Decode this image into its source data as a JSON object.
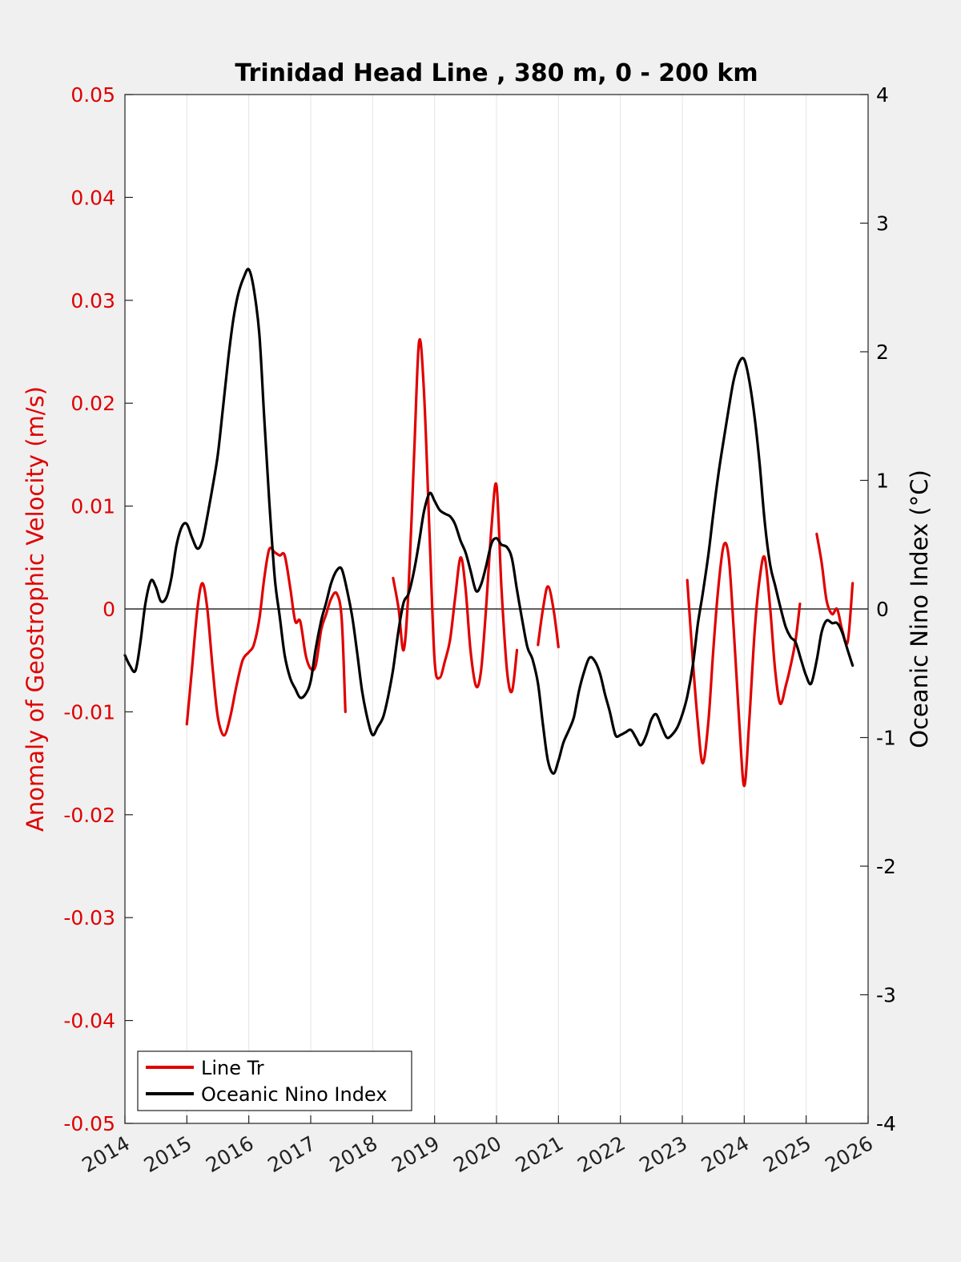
{
  "chart_data": {
    "type": "line",
    "title": "Trinidad Head Line , 380 m, 0 - 200 km",
    "xlabel": "",
    "xlim": [
      2014,
      2026
    ],
    "x_ticks": [
      "2014",
      "2015",
      "2016",
      "2017",
      "2018",
      "2019",
      "2020",
      "2021",
      "2022",
      "2023",
      "2024",
      "2025",
      "2026"
    ],
    "ylabel_left": "Anomaly of Geostrophic Velocity (m/s)",
    "ylim_left": [
      -0.05,
      0.05
    ],
    "y_ticks_left": [
      "0.05",
      "0.04",
      "0.03",
      "0.02",
      "0.01",
      "0",
      "-0.01",
      "-0.02",
      "-0.03",
      "-0.04",
      "-0.05"
    ],
    "ylabel_right": "Oceanic Nino Index (°C)",
    "ylim_right": [
      -4,
      4
    ],
    "y_ticks_right": [
      "4",
      "3",
      "2",
      "1",
      "0",
      "-1",
      "-2",
      "-3",
      "-4"
    ],
    "grid": "vertical",
    "legend_position": "bottom-left",
    "colors": {
      "line_tr": "#e00000",
      "oni": "#000000"
    },
    "series": [
      {
        "name": "Line Tr",
        "axis": "left",
        "color": "#e00000",
        "segments": [
          [
            [
              2015.0,
              -0.0112
            ],
            [
              2015.08,
              -0.006
            ],
            [
              2015.17,
              0.0
            ],
            [
              2015.25,
              0.0025
            ],
            [
              2015.33,
              0.0
            ],
            [
              2015.42,
              -0.006
            ],
            [
              2015.5,
              -0.0105
            ],
            [
              2015.6,
              -0.0123
            ],
            [
              2015.7,
              -0.0105
            ],
            [
              2015.8,
              -0.0075
            ],
            [
              2015.9,
              -0.005
            ],
            [
              2016.0,
              -0.0042
            ],
            [
              2016.08,
              -0.0035
            ],
            [
              2016.17,
              -0.001
            ],
            [
              2016.25,
              0.003
            ],
            [
              2016.33,
              0.0058
            ],
            [
              2016.42,
              0.0055
            ],
            [
              2016.5,
              0.0052
            ],
            [
              2016.58,
              0.0052
            ],
            [
              2016.67,
              0.002
            ],
            [
              2016.75,
              -0.0012
            ],
            [
              2016.83,
              -0.0012
            ],
            [
              2016.92,
              -0.0045
            ],
            [
              2017.0,
              -0.0058
            ],
            [
              2017.08,
              -0.0055
            ],
            [
              2017.17,
              -0.002
            ],
            [
              2017.25,
              -0.0005
            ],
            [
              2017.33,
              0.001
            ],
            [
              2017.42,
              0.0015
            ],
            [
              2017.5,
              -0.001
            ],
            [
              2017.56,
              -0.01
            ]
          ],
          [
            [
              2018.33,
              0.003
            ],
            [
              2018.42,
              0.0
            ],
            [
              2018.5,
              -0.004
            ],
            [
              2018.58,
              0.002
            ],
            [
              2018.67,
              0.015
            ],
            [
              2018.75,
              0.026
            ],
            [
              2018.83,
              0.021
            ],
            [
              2018.92,
              0.007
            ],
            [
              2019.0,
              -0.005
            ],
            [
              2019.08,
              -0.0067
            ],
            [
              2019.17,
              -0.005
            ],
            [
              2019.25,
              -0.003
            ],
            [
              2019.33,
              0.001
            ],
            [
              2019.42,
              0.005
            ],
            [
              2019.5,
              0.002
            ],
            [
              2019.58,
              -0.004
            ],
            [
              2019.67,
              -0.0075
            ],
            [
              2019.75,
              -0.006
            ],
            [
              2019.83,
              0.0
            ],
            [
              2019.92,
              0.008
            ],
            [
              2020.0,
              0.012
            ],
            [
              2020.08,
              0.002
            ],
            [
              2020.17,
              -0.006
            ],
            [
              2020.25,
              -0.008
            ],
            [
              2020.33,
              -0.004
            ]
          ],
          [
            [
              2020.67,
              -0.0035
            ],
            [
              2020.75,
              0.0
            ],
            [
              2020.83,
              0.0022
            ],
            [
              2020.92,
              0.0
            ],
            [
              2021.0,
              -0.0037
            ]
          ],
          [
            [
              2023.08,
              0.0028
            ],
            [
              2023.17,
              -0.005
            ],
            [
              2023.25,
              -0.011
            ],
            [
              2023.33,
              -0.015
            ],
            [
              2023.42,
              -0.011
            ],
            [
              2023.5,
              -0.004
            ],
            [
              2023.58,
              0.002
            ],
            [
              2023.67,
              0.0062
            ],
            [
              2023.75,
              0.005
            ],
            [
              2023.83,
              -0.002
            ],
            [
              2023.92,
              -0.011
            ],
            [
              2024.0,
              -0.0172
            ],
            [
              2024.08,
              -0.011
            ],
            [
              2024.17,
              -0.002
            ],
            [
              2024.25,
              0.003
            ],
            [
              2024.33,
              0.005
            ],
            [
              2024.42,
              0.0
            ],
            [
              2024.5,
              -0.006
            ],
            [
              2024.58,
              -0.0092
            ],
            [
              2024.67,
              -0.0075
            ],
            [
              2024.75,
              -0.0055
            ],
            [
              2024.83,
              -0.003
            ],
            [
              2024.9,
              0.0005
            ]
          ],
          [
            [
              2025.17,
              0.0073
            ],
            [
              2025.25,
              0.0045
            ],
            [
              2025.33,
              0.0008
            ],
            [
              2025.42,
              -0.0005
            ],
            [
              2025.5,
              0.0
            ],
            [
              2025.58,
              -0.002
            ],
            [
              2025.67,
              -0.0032
            ],
            [
              2025.75,
              0.0025
            ]
          ]
        ]
      },
      {
        "name": "Oceanic Nino Index",
        "axis": "right",
        "color": "#000000",
        "segments": [
          [
            [
              2014.0,
              -0.36
            ],
            [
              2014.08,
              -0.44
            ],
            [
              2014.17,
              -0.48
            ],
            [
              2014.25,
              -0.26
            ],
            [
              2014.33,
              0.04
            ],
            [
              2014.42,
              0.22
            ],
            [
              2014.5,
              0.17
            ],
            [
              2014.58,
              0.06
            ],
            [
              2014.67,
              0.09
            ],
            [
              2014.75,
              0.24
            ],
            [
              2014.83,
              0.49
            ],
            [
              2014.92,
              0.64
            ],
            [
              2015.0,
              0.66
            ],
            [
              2015.08,
              0.56
            ],
            [
              2015.17,
              0.47
            ],
            [
              2015.25,
              0.53
            ],
            [
              2015.33,
              0.72
            ],
            [
              2015.42,
              0.96
            ],
            [
              2015.5,
              1.2
            ],
            [
              2015.58,
              1.55
            ],
            [
              2015.67,
              1.95
            ],
            [
              2015.75,
              2.25
            ],
            [
              2015.83,
              2.45
            ],
            [
              2015.92,
              2.58
            ],
            [
              2016.0,
              2.64
            ],
            [
              2016.08,
              2.49
            ],
            [
              2016.17,
              2.14
            ],
            [
              2016.25,
              1.48
            ],
            [
              2016.33,
              0.84
            ],
            [
              2016.42,
              0.24
            ],
            [
              2016.5,
              -0.06
            ],
            [
              2016.58,
              -0.36
            ],
            [
              2016.67,
              -0.54
            ],
            [
              2016.75,
              -0.62
            ],
            [
              2016.83,
              -0.69
            ],
            [
              2016.92,
              -0.66
            ],
            [
              2017.0,
              -0.56
            ],
            [
              2017.08,
              -0.31
            ],
            [
              2017.17,
              -0.09
            ],
            [
              2017.25,
              0.05
            ],
            [
              2017.33,
              0.2
            ],
            [
              2017.42,
              0.3
            ],
            [
              2017.5,
              0.31
            ],
            [
              2017.58,
              0.16
            ],
            [
              2017.67,
              -0.06
            ],
            [
              2017.75,
              -0.34
            ],
            [
              2017.83,
              -0.64
            ],
            [
              2017.92,
              -0.86
            ],
            [
              2018.0,
              -0.98
            ],
            [
              2018.08,
              -0.92
            ],
            [
              2018.17,
              -0.84
            ],
            [
              2018.25,
              -0.68
            ],
            [
              2018.33,
              -0.47
            ],
            [
              2018.42,
              -0.16
            ],
            [
              2018.5,
              0.05
            ],
            [
              2018.58,
              0.12
            ],
            [
              2018.67,
              0.3
            ],
            [
              2018.75,
              0.52
            ],
            [
              2018.83,
              0.76
            ],
            [
              2018.92,
              0.9
            ],
            [
              2019.0,
              0.84
            ],
            [
              2019.08,
              0.77
            ],
            [
              2019.17,
              0.74
            ],
            [
              2019.25,
              0.72
            ],
            [
              2019.33,
              0.66
            ],
            [
              2019.42,
              0.53
            ],
            [
              2019.5,
              0.44
            ],
            [
              2019.58,
              0.3
            ],
            [
              2019.67,
              0.14
            ],
            [
              2019.75,
              0.19
            ],
            [
              2019.83,
              0.33
            ],
            [
              2019.92,
              0.51
            ],
            [
              2020.0,
              0.55
            ],
            [
              2020.08,
              0.5
            ],
            [
              2020.17,
              0.48
            ],
            [
              2020.25,
              0.39
            ],
            [
              2020.33,
              0.15
            ],
            [
              2020.42,
              -0.1
            ],
            [
              2020.5,
              -0.3
            ],
            [
              2020.58,
              -0.39
            ],
            [
              2020.67,
              -0.58
            ],
            [
              2020.75,
              -0.9
            ],
            [
              2020.83,
              -1.18
            ],
            [
              2020.92,
              -1.28
            ],
            [
              2021.0,
              -1.18
            ],
            [
              2021.08,
              -1.04
            ],
            [
              2021.17,
              -0.94
            ],
            [
              2021.25,
              -0.84
            ],
            [
              2021.33,
              -0.64
            ],
            [
              2021.42,
              -0.48
            ],
            [
              2021.5,
              -0.38
            ],
            [
              2021.58,
              -0.4
            ],
            [
              2021.67,
              -0.5
            ],
            [
              2021.75,
              -0.66
            ],
            [
              2021.83,
              -0.8
            ],
            [
              2021.92,
              -0.98
            ],
            [
              2022.0,
              -0.98
            ],
            [
              2022.08,
              -0.96
            ],
            [
              2022.17,
              -0.94
            ],
            [
              2022.25,
              -1.0
            ],
            [
              2022.33,
              -1.06
            ],
            [
              2022.42,
              -0.98
            ],
            [
              2022.5,
              -0.86
            ],
            [
              2022.58,
              -0.82
            ],
            [
              2022.67,
              -0.92
            ],
            [
              2022.75,
              -1.0
            ],
            [
              2022.83,
              -0.98
            ],
            [
              2022.92,
              -0.92
            ],
            [
              2023.0,
              -0.82
            ],
            [
              2023.08,
              -0.68
            ],
            [
              2023.17,
              -0.44
            ],
            [
              2023.25,
              -0.12
            ],
            [
              2023.33,
              0.12
            ],
            [
              2023.42,
              0.42
            ],
            [
              2023.5,
              0.74
            ],
            [
              2023.58,
              1.04
            ],
            [
              2023.67,
              1.32
            ],
            [
              2023.75,
              1.56
            ],
            [
              2023.83,
              1.78
            ],
            [
              2023.92,
              1.92
            ],
            [
              2024.0,
              1.94
            ],
            [
              2024.08,
              1.78
            ],
            [
              2024.17,
              1.48
            ],
            [
              2024.25,
              1.12
            ],
            [
              2024.33,
              0.68
            ],
            [
              2024.42,
              0.34
            ],
            [
              2024.5,
              0.18
            ],
            [
              2024.58,
              0.02
            ],
            [
              2024.67,
              -0.14
            ],
            [
              2024.75,
              -0.22
            ],
            [
              2024.83,
              -0.26
            ],
            [
              2024.92,
              -0.4
            ],
            [
              2025.0,
              -0.52
            ],
            [
              2025.08,
              -0.58
            ],
            [
              2025.17,
              -0.4
            ],
            [
              2025.25,
              -0.18
            ],
            [
              2025.33,
              -0.09
            ],
            [
              2025.42,
              -0.11
            ],
            [
              2025.5,
              -0.11
            ],
            [
              2025.58,
              -0.18
            ],
            [
              2025.67,
              -0.32
            ],
            [
              2025.75,
              -0.44
            ]
          ]
        ]
      }
    ]
  }
}
